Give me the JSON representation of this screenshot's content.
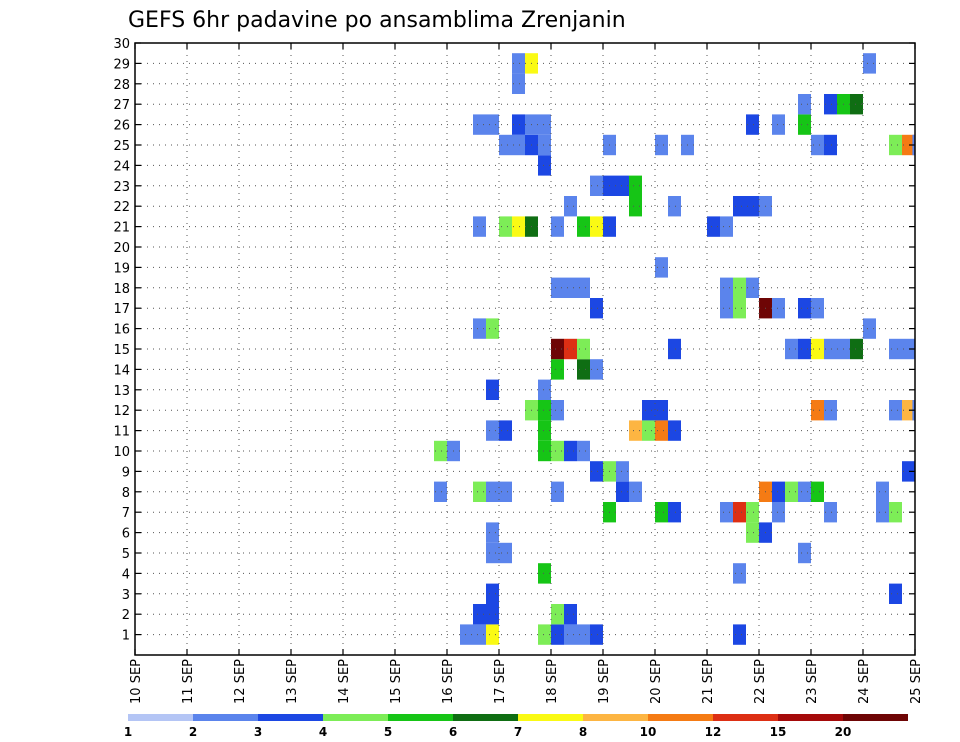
{
  "chart_data": {
    "type": "heatmap",
    "title": "GEFS 6hr padavine po ansamblima Zrenjanin",
    "xlabel": "",
    "ylabel": "",
    "x_ticks": [
      "10 SEP",
      "11 SEP",
      "12 SEP",
      "13 SEP",
      "14 SEP",
      "15 SEP",
      "16 SEP",
      "17 SEP",
      "18 SEP",
      "19 SEP",
      "20 SEP",
      "21 SEP",
      "22 SEP",
      "23 SEP",
      "24 SEP",
      "25 SEP"
    ],
    "y_ticks": [
      "1",
      "2",
      "3",
      "4",
      "5",
      "6",
      "7",
      "8",
      "9",
      "10",
      "11",
      "12",
      "13",
      "14",
      "15",
      "16",
      "17",
      "18",
      "19",
      "20",
      "21",
      "22",
      "23",
      "24",
      "25",
      "26",
      "27",
      "28",
      "29",
      "30"
    ],
    "xlim": [
      0,
      15
    ],
    "ylim": [
      0,
      30
    ],
    "x_step_days": 0.25,
    "grid": true,
    "legend": "colorbar-bottom",
    "colorbar": {
      "labels": [
        "1",
        "2",
        "3",
        "4",
        "5",
        "6",
        "7",
        "8",
        "10",
        "12",
        "15",
        "20"
      ],
      "colors": [
        "#b4c5f5",
        "#5b84ec",
        "#1c47e3",
        "#7ded57",
        "#16c516",
        "#0f6e13",
        "#fafa14",
        "#fdb542",
        "#f57b14",
        "#dd2f14",
        "#a50a0a",
        "#6e0505"
      ]
    },
    "cells": [
      [
        6.25,
        1,
        1
      ],
      [
        6.5,
        1,
        1
      ],
      [
        6.75,
        1,
        6
      ],
      [
        7.75,
        1,
        3
      ],
      [
        8.0,
        1,
        2
      ],
      [
        8.25,
        1,
        1
      ],
      [
        8.5,
        1,
        1
      ],
      [
        8.75,
        1,
        2
      ],
      [
        11.5,
        1,
        2
      ],
      [
        6.5,
        2,
        2
      ],
      [
        6.75,
        2,
        2
      ],
      [
        8.0,
        2,
        3
      ],
      [
        8.25,
        2,
        2
      ],
      [
        6.75,
        3,
        2
      ],
      [
        14.5,
        3,
        2
      ],
      [
        7.75,
        4,
        4
      ],
      [
        11.5,
        4,
        1
      ],
      [
        6.75,
        5,
        1
      ],
      [
        7.0,
        5,
        1
      ],
      [
        12.75,
        5,
        1
      ],
      [
        6.75,
        6,
        1
      ],
      [
        11.75,
        6,
        3
      ],
      [
        12.0,
        6,
        2
      ],
      [
        9.0,
        7,
        4
      ],
      [
        10.0,
        7,
        4
      ],
      [
        10.25,
        7,
        2
      ],
      [
        11.25,
        7,
        1
      ],
      [
        11.5,
        7,
        9
      ],
      [
        11.75,
        7,
        3
      ],
      [
        12.25,
        7,
        1
      ],
      [
        13.25,
        7,
        1
      ],
      [
        14.25,
        7,
        1
      ],
      [
        14.5,
        7,
        3
      ],
      [
        5.75,
        8,
        1
      ],
      [
        6.5,
        8,
        3
      ],
      [
        6.75,
        8,
        1
      ],
      [
        7.0,
        8,
        1
      ],
      [
        8.0,
        8,
        1
      ],
      [
        9.25,
        8,
        2
      ],
      [
        9.5,
        8,
        1
      ],
      [
        12.0,
        8,
        8
      ],
      [
        12.25,
        8,
        2
      ],
      [
        12.5,
        8,
        3
      ],
      [
        12.75,
        8,
        1
      ],
      [
        13.0,
        8,
        4
      ],
      [
        14.25,
        8,
        1
      ],
      [
        8.75,
        9,
        2
      ],
      [
        9.0,
        9,
        3
      ],
      [
        9.25,
        9,
        1
      ],
      [
        14.75,
        9,
        2
      ],
      [
        5.75,
        10,
        3
      ],
      [
        6.0,
        10,
        1
      ],
      [
        7.75,
        10,
        4
      ],
      [
        8.0,
        10,
        3
      ],
      [
        8.25,
        10,
        2
      ],
      [
        8.5,
        10,
        1
      ],
      [
        6.75,
        11,
        1
      ],
      [
        7.0,
        11,
        2
      ],
      [
        7.75,
        11,
        4
      ],
      [
        9.5,
        11,
        7
      ],
      [
        9.75,
        11,
        3
      ],
      [
        10.0,
        11,
        8
      ],
      [
        10.25,
        11,
        2
      ],
      [
        7.5,
        12,
        3
      ],
      [
        7.75,
        12,
        4
      ],
      [
        8.0,
        12,
        1
      ],
      [
        9.75,
        12,
        2
      ],
      [
        10.0,
        12,
        2
      ],
      [
        13.0,
        12,
        8
      ],
      [
        13.25,
        12,
        1
      ],
      [
        14.5,
        12,
        1
      ],
      [
        14.75,
        12,
        7
      ],
      [
        14.95,
        12,
        1
      ],
      [
        6.75,
        13,
        2
      ],
      [
        7.75,
        13,
        1
      ],
      [
        8.0,
        14,
        4
      ],
      [
        8.5,
        14,
        5
      ],
      [
        8.75,
        14,
        1
      ],
      [
        8.0,
        15,
        11
      ],
      [
        8.25,
        15,
        9
      ],
      [
        8.5,
        15,
        3
      ],
      [
        10.25,
        15,
        2
      ],
      [
        12.5,
        15,
        1
      ],
      [
        12.75,
        15,
        2
      ],
      [
        13.0,
        15,
        6
      ],
      [
        13.25,
        15,
        1
      ],
      [
        13.5,
        15,
        1
      ],
      [
        13.75,
        15,
        5
      ],
      [
        14.5,
        15,
        1
      ],
      [
        14.75,
        15,
        1
      ],
      [
        6.5,
        16,
        1
      ],
      [
        6.75,
        16,
        3
      ],
      [
        14.0,
        16,
        1
      ],
      [
        8.75,
        17,
        2
      ],
      [
        11.25,
        17,
        1
      ],
      [
        11.5,
        17,
        3
      ],
      [
        12.0,
        17,
        11
      ],
      [
        12.25,
        17,
        1
      ],
      [
        12.75,
        17,
        2
      ],
      [
        13.0,
        17,
        1
      ],
      [
        8.0,
        18,
        1
      ],
      [
        8.25,
        18,
        1
      ],
      [
        8.5,
        18,
        1
      ],
      [
        11.25,
        18,
        1
      ],
      [
        11.5,
        18,
        3
      ],
      [
        11.75,
        18,
        1
      ],
      [
        10.0,
        19,
        1
      ],
      [
        6.5,
        21,
        1
      ],
      [
        7.0,
        21,
        3
      ],
      [
        7.25,
        21,
        6
      ],
      [
        7.5,
        21,
        5
      ],
      [
        8.0,
        21,
        1
      ],
      [
        8.5,
        21,
        4
      ],
      [
        8.75,
        21,
        6
      ],
      [
        9.0,
        21,
        2
      ],
      [
        11.0,
        21,
        2
      ],
      [
        11.25,
        21,
        1
      ],
      [
        8.25,
        22,
        1
      ],
      [
        9.5,
        22,
        4
      ],
      [
        10.25,
        22,
        1
      ],
      [
        11.5,
        22,
        2
      ],
      [
        11.75,
        22,
        2
      ],
      [
        12.0,
        22,
        1
      ],
      [
        8.75,
        23,
        1
      ],
      [
        9.0,
        23,
        2
      ],
      [
        9.25,
        23,
        2
      ],
      [
        9.5,
        23,
        4
      ],
      [
        7.75,
        24,
        2
      ],
      [
        7.0,
        25,
        1
      ],
      [
        7.25,
        25,
        1
      ],
      [
        7.5,
        25,
        2
      ],
      [
        7.75,
        25,
        1
      ],
      [
        9.0,
        25,
        1
      ],
      [
        10.0,
        25,
        1
      ],
      [
        10.5,
        25,
        1
      ],
      [
        13.0,
        25,
        1
      ],
      [
        13.25,
        25,
        2
      ],
      [
        14.5,
        25,
        3
      ],
      [
        14.75,
        25,
        8
      ],
      [
        14.95,
        25,
        1
      ],
      [
        6.5,
        26,
        1
      ],
      [
        6.75,
        26,
        1
      ],
      [
        7.25,
        26,
        2
      ],
      [
        7.5,
        26,
        1
      ],
      [
        7.75,
        26,
        1
      ],
      [
        11.75,
        26,
        2
      ],
      [
        12.25,
        26,
        1
      ],
      [
        12.75,
        26,
        4
      ],
      [
        12.75,
        27,
        1
      ],
      [
        13.25,
        27,
        2
      ],
      [
        13.5,
        27,
        4
      ],
      [
        13.75,
        27,
        5
      ],
      [
        7.25,
        28,
        1
      ],
      [
        7.25,
        29,
        1
      ],
      [
        7.5,
        29,
        6
      ],
      [
        14.0,
        29,
        1
      ]
    ]
  }
}
